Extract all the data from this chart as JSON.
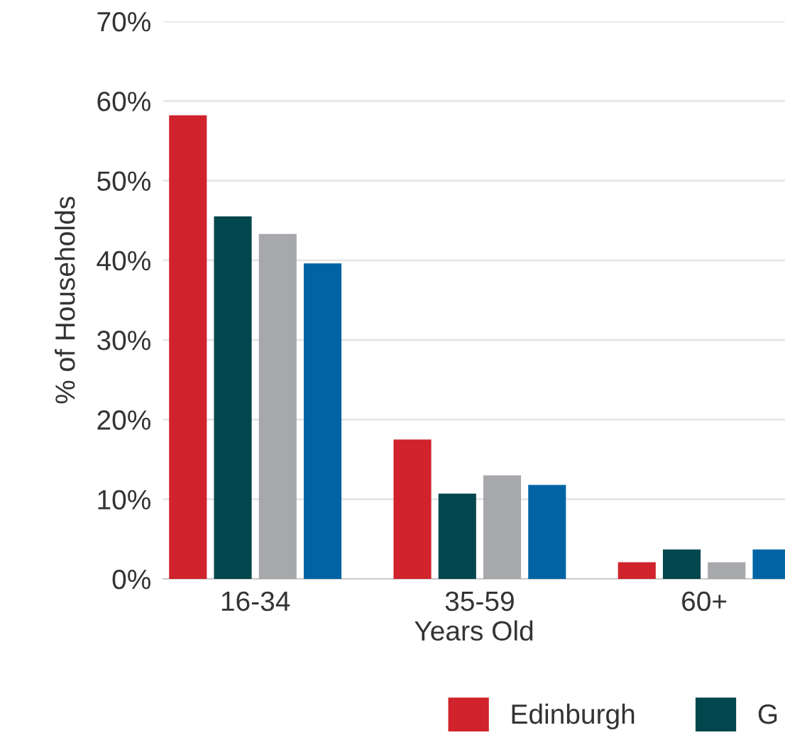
{
  "chart_data": {
    "type": "bar",
    "categories": [
      "16-34",
      "35-59",
      "60+"
    ],
    "xlabel": "Years Old",
    "ylabel": "% of Households",
    "ylim": [
      0,
      70
    ],
    "yticks": [
      {
        "value": 0,
        "label": "0%"
      },
      {
        "value": 10,
        "label": "10%"
      },
      {
        "value": 20,
        "label": "20%"
      },
      {
        "value": 30,
        "label": "30%"
      },
      {
        "value": 40,
        "label": "40%"
      },
      {
        "value": 50,
        "label": "50%"
      },
      {
        "value": 60,
        "label": "60%"
      },
      {
        "value": 70,
        "label": "70%"
      }
    ],
    "grid": "y",
    "legend": "bottom",
    "series": [
      {
        "name": "Edinburgh",
        "color": "#d0232b",
        "values": [
          58.2,
          17.5,
          2.1
        ]
      },
      {
        "name": "G",
        "color": "#02474d",
        "values": [
          45.5,
          10.7,
          3.7
        ]
      },
      {
        "color": "#a7a8ab",
        "values": [
          43.3,
          13.0,
          2.1
        ]
      },
      {
        "color": "#0064a4",
        "values": [
          39.6,
          11.8,
          3.7
        ]
      }
    ]
  }
}
